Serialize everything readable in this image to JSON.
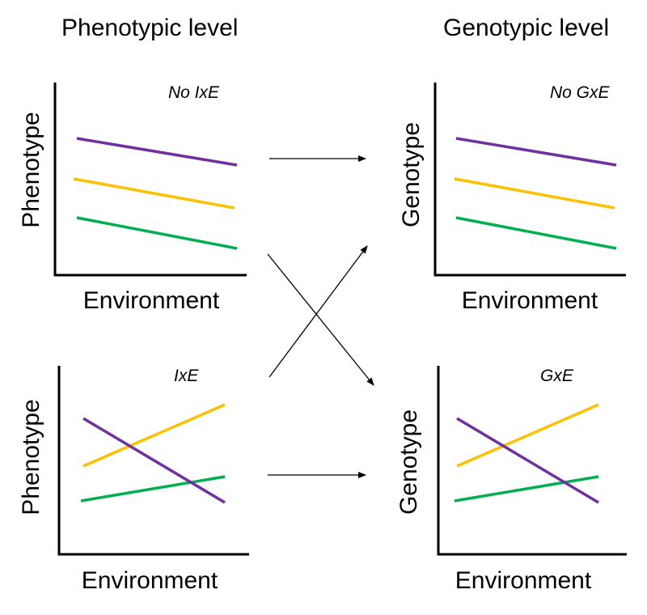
{
  "headings": {
    "phenotypic": "Phenotypic level",
    "genotypic": "Genotypic level"
  },
  "panels": [
    {
      "id": "pheno-no-ixe",
      "label": "No IxE",
      "ylabel": "Phenotype",
      "xlabel": "Environment"
    },
    {
      "id": "geno-no-gxe",
      "label": "No GxE",
      "ylabel": "Genotype",
      "xlabel": "Environment"
    },
    {
      "id": "pheno-ixe",
      "label": "IxE",
      "ylabel": "Phenotype",
      "xlabel": "Environment"
    },
    {
      "id": "geno-gxe",
      "label": "GxE",
      "ylabel": "Genotype",
      "xlabel": "Environment"
    }
  ],
  "colors": {
    "purple": "#7030a0",
    "yellow": "#ffc000",
    "green": "#00b050",
    "axis": "#000000"
  }
}
